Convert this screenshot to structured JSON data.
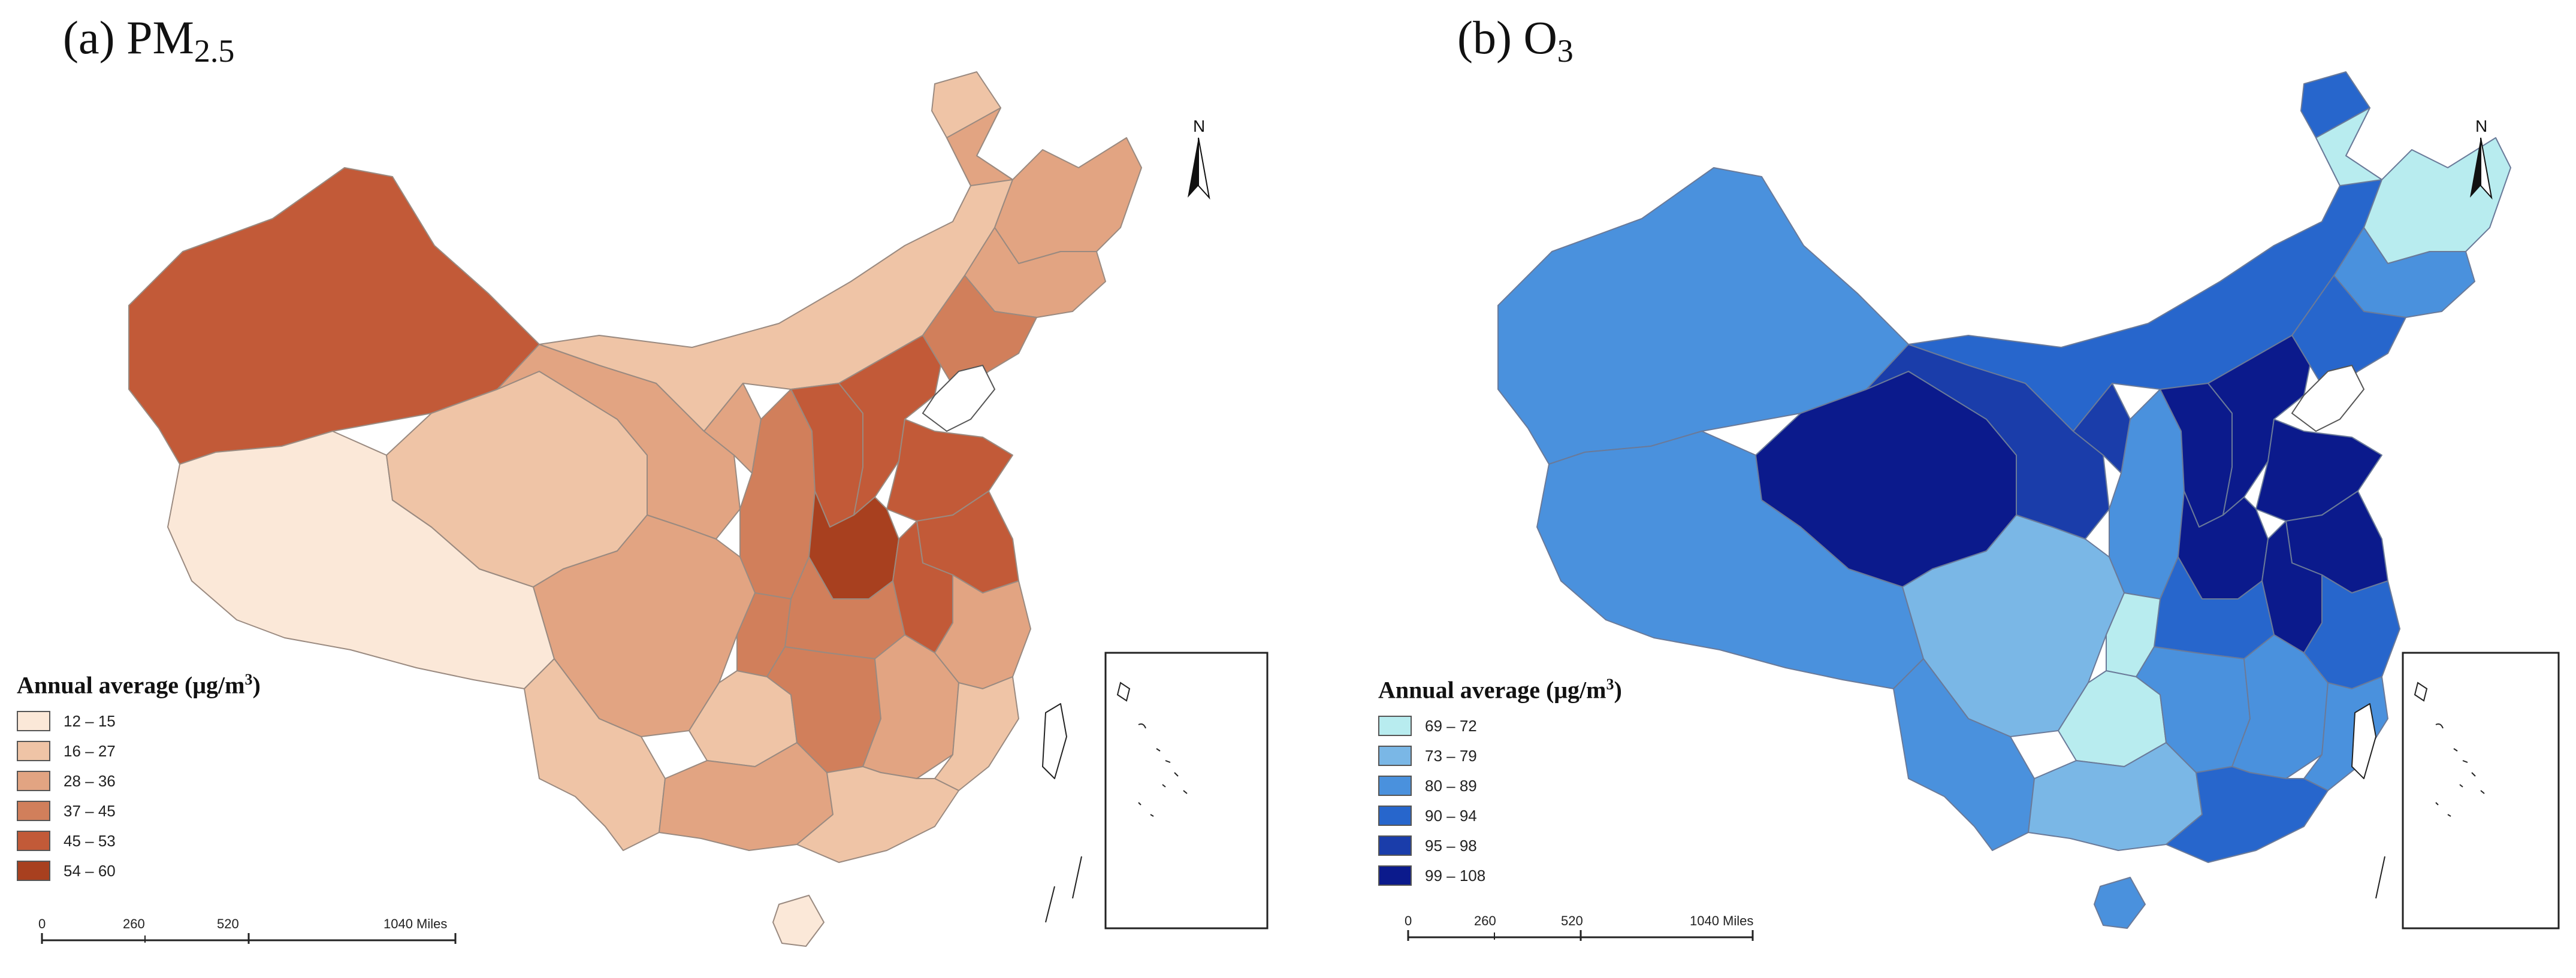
{
  "panels": [
    {
      "id": "a",
      "title_main": "(a) PM",
      "title_sub": "2.5",
      "legend_title": "Annual average (μg/m",
      "legend_title_sup": "3",
      "legend_title_end": ")",
      "classes": [
        {
          "label": "12 – 15",
          "color": "#fbe8d8"
        },
        {
          "label": "16 – 27",
          "color": "#efc4a6"
        },
        {
          "label": "28 – 36",
          "color": "#e2a482"
        },
        {
          "label": "37 – 45",
          "color": "#d17f5b"
        },
        {
          "label": "45 – 53",
          "color": "#c25a38"
        },
        {
          "label": "54 – 60",
          "color": "#a8401f"
        }
      ],
      "scale_labels": [
        "0",
        "260",
        "520",
        "1040 Miles"
      ],
      "north": "N"
    },
    {
      "id": "b",
      "title_main": "(b) O",
      "title_sub": "3",
      "legend_title": "Annual average (μg/m",
      "legend_title_sup": "3",
      "legend_title_end": ")",
      "classes": [
        {
          "label": "69 – 72",
          "color": "#b8ecef"
        },
        {
          "label": "73 – 79",
          "color": "#7ab7e6"
        },
        {
          "label": "80 – 89",
          "color": "#4a91dd"
        },
        {
          "label": "90 – 94",
          "color": "#2766cc"
        },
        {
          "label": "95 – 98",
          "color": "#1a3daa"
        },
        {
          "label": "99 – 108",
          "color": "#0b1a8c"
        }
      ],
      "scale_labels": [
        "0",
        "260",
        "520",
        "1040 Miles"
      ],
      "north": "N"
    }
  ]
}
